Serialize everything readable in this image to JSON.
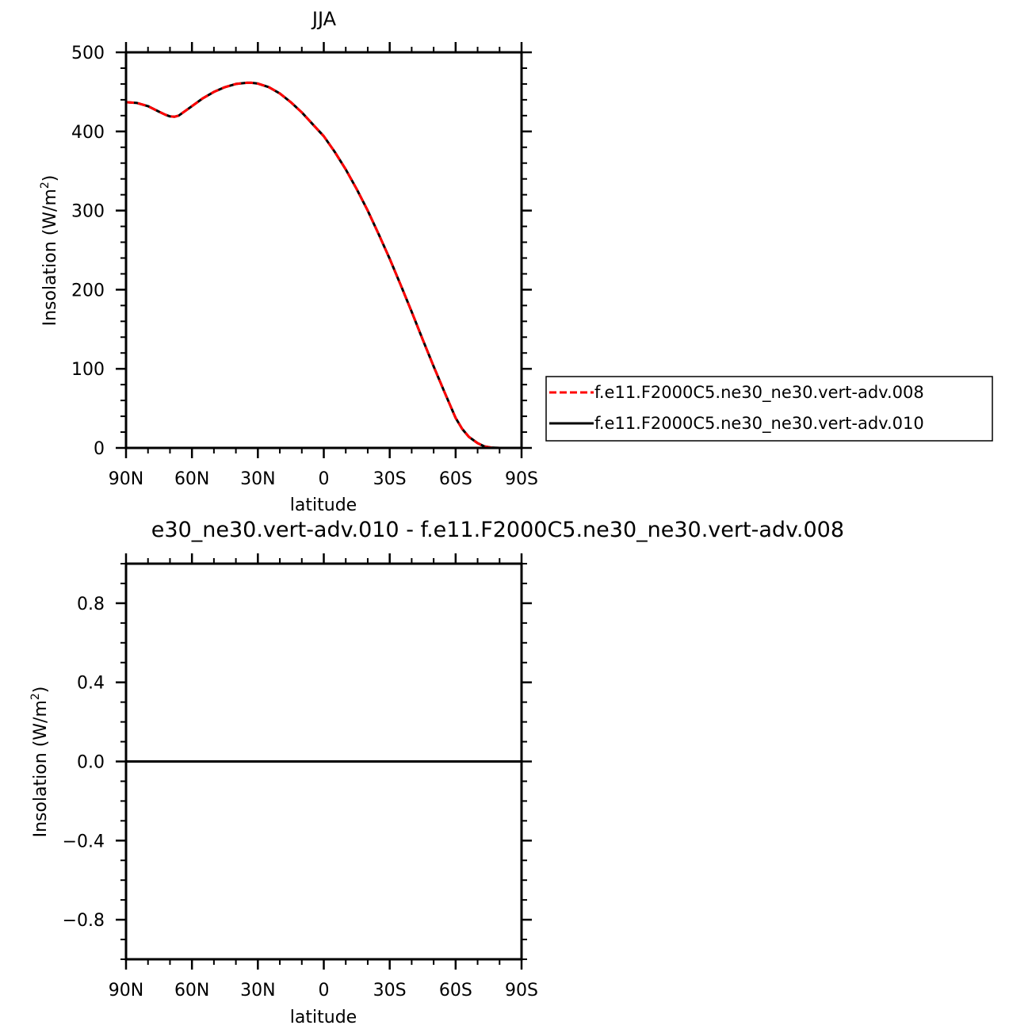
{
  "chart_data": [
    {
      "type": "line",
      "title": "JJA",
      "xlabel": "latitude",
      "ylabel_main": "Insolation  (W/m",
      "ylabel_sup": "2",
      "ylabel_close": ")",
      "xlim": [
        -90,
        90
      ],
      "ylim": [
        0,
        500
      ],
      "xtick_values": [
        -90,
        -60,
        -30,
        0,
        30,
        60,
        90
      ],
      "xtick_labels": [
        "90N",
        "60N",
        "30N",
        "0",
        "30S",
        "60S",
        "90S"
      ],
      "ytick_values": [
        0,
        100,
        200,
        300,
        400,
        500
      ],
      "ytick_labels": [
        "0",
        "100",
        "200",
        "300",
        "400",
        "500"
      ],
      "legend_placement": "right",
      "series": [
        {
          "name": "f.e11.F2000C5.ne30_ne30.vert-adv.008",
          "color": "#ff0000",
          "dash": "dashed",
          "x": [
            -90,
            -85,
            -80,
            -75,
            -72,
            -70,
            -68,
            -66,
            -60,
            -55,
            -50,
            -45,
            -40,
            -35,
            -33,
            -30,
            -25,
            -20,
            -15,
            -10,
            -5,
            0,
            5,
            10,
            15,
            20,
            25,
            30,
            35,
            40,
            45,
            50,
            55,
            60,
            63,
            66,
            70,
            73,
            76,
            80,
            85,
            90
          ],
          "y": [
            437,
            436,
            432,
            425,
            421,
            419,
            418.5,
            420,
            432,
            442,
            450,
            456,
            460,
            461.5,
            461.5,
            460.5,
            456,
            448,
            437,
            424,
            409,
            394,
            374,
            352,
            327,
            300,
            270,
            239,
            206,
            172,
            137,
            103,
            70,
            38,
            24,
            14,
            6,
            2,
            0.5,
            0,
            0,
            0
          ]
        },
        {
          "name": "f.e11.F2000C5.ne30_ne30.vert-adv.010",
          "color": "#000000",
          "dash": "solid",
          "x": [
            -90,
            -85,
            -80,
            -75,
            -72,
            -70,
            -68,
            -66,
            -60,
            -55,
            -50,
            -45,
            -40,
            -35,
            -33,
            -30,
            -25,
            -20,
            -15,
            -10,
            -5,
            0,
            5,
            10,
            15,
            20,
            25,
            30,
            35,
            40,
            45,
            50,
            55,
            60,
            63,
            66,
            70,
            73,
            76,
            80,
            85,
            90
          ],
          "y": [
            437,
            436,
            432,
            425,
            421,
            419,
            418.5,
            420,
            432,
            442,
            450,
            456,
            460,
            461.5,
            461.5,
            460.5,
            456,
            448,
            437,
            424,
            409,
            394,
            374,
            352,
            327,
            300,
            270,
            239,
            206,
            172,
            137,
            103,
            70,
            38,
            24,
            14,
            6,
            2,
            0.5,
            0,
            0,
            0
          ]
        }
      ]
    },
    {
      "type": "line",
      "title": "e30_ne30.vert-adv.010 - f.e11.F2000C5.ne30_ne30.vert-adv.008",
      "xlabel": "latitude",
      "ylabel_main": "Insolation  (W/m",
      "ylabel_sup": "2",
      "ylabel_close": ")",
      "xlim": [
        -90,
        90
      ],
      "ylim": [
        -1,
        1
      ],
      "xtick_values": [
        -90,
        -60,
        -30,
        0,
        30,
        60,
        90
      ],
      "xtick_labels": [
        "90N",
        "60N",
        "30N",
        "0",
        "30S",
        "60S",
        "90S"
      ],
      "ytick_values": [
        -0.8,
        -0.4,
        0.0,
        0.4,
        0.8
      ],
      "ytick_labels": [
        "−0.8",
        "−0.4",
        "0.0",
        "0.4",
        "0.8"
      ],
      "series": [
        {
          "color": "#000000",
          "dash": "solid",
          "x": [
            -90,
            90
          ],
          "y": [
            0,
            0
          ]
        }
      ]
    }
  ]
}
